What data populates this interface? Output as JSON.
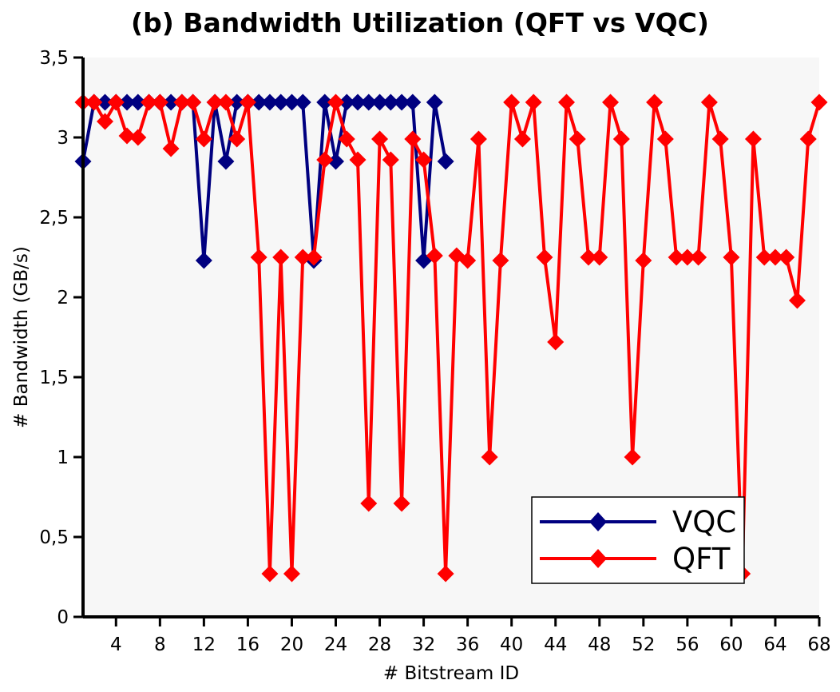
{
  "chart_data": {
    "type": "line",
    "title": "(b) Bandwidth Utilization (QFT vs VQC)",
    "xlabel": "# Bitstream ID",
    "ylabel": "# Bandwidth (GB/s)",
    "xlim": [
      1,
      68
    ],
    "ylim": [
      0,
      3.5
    ],
    "xticks": [
      4,
      8,
      12,
      16,
      20,
      24,
      28,
      32,
      36,
      40,
      44,
      48,
      52,
      56,
      60,
      64,
      68
    ],
    "yticks": [
      0,
      0.5,
      1,
      1.5,
      2,
      2.5,
      3,
      3.5
    ],
    "ytick_labels": [
      "0",
      "0,5",
      "1",
      "1,5",
      "2",
      "2,5",
      "3",
      "3,5"
    ],
    "legend_position": "bottom-right",
    "series": [
      {
        "name": "VQC",
        "color": "#000080",
        "marker": "diamond",
        "x": [
          1,
          2,
          3,
          4,
          5,
          6,
          7,
          8,
          9,
          10,
          11,
          12,
          13,
          14,
          15,
          16,
          17,
          18,
          19,
          20,
          21,
          22,
          23,
          24,
          25,
          26,
          27,
          28,
          29,
          30,
          31,
          32,
          33,
          34
        ],
        "values": [
          2.85,
          3.22,
          3.22,
          3.22,
          3.22,
          3.22,
          3.22,
          3.22,
          3.22,
          3.22,
          3.22,
          2.23,
          3.22,
          2.85,
          3.22,
          3.22,
          3.22,
          3.22,
          3.22,
          3.22,
          3.22,
          2.23,
          3.22,
          2.85,
          3.22,
          3.22,
          3.22,
          3.22,
          3.22,
          3.22,
          3.22,
          2.23,
          3.22,
          2.85
        ]
      },
      {
        "name": "QFT",
        "color": "#ff0000",
        "marker": "diamond",
        "x": [
          1,
          2,
          3,
          4,
          5,
          6,
          7,
          8,
          9,
          10,
          11,
          12,
          13,
          14,
          15,
          16,
          17,
          18,
          19,
          20,
          21,
          22,
          23,
          24,
          25,
          26,
          27,
          28,
          29,
          30,
          31,
          32,
          33,
          34,
          35,
          36,
          37,
          38,
          39,
          40,
          41,
          42,
          43,
          44,
          45,
          46,
          47,
          48,
          49,
          50,
          51,
          52,
          53,
          54,
          55,
          56,
          57,
          58,
          59,
          60,
          61,
          62,
          63,
          64,
          65,
          66,
          67,
          68
        ],
        "values": [
          3.22,
          3.22,
          3.1,
          3.22,
          3.01,
          3.0,
          3.22,
          3.22,
          2.93,
          3.22,
          3.22,
          2.99,
          3.22,
          3.22,
          2.99,
          3.22,
          2.25,
          0.27,
          2.25,
          0.27,
          2.25,
          2.25,
          2.86,
          3.22,
          2.99,
          2.86,
          0.71,
          2.99,
          2.86,
          0.71,
          2.99,
          2.86,
          2.26,
          0.27,
          2.26,
          2.23,
          2.99,
          1.0,
          2.23,
          3.22,
          2.99,
          3.22,
          2.25,
          1.72,
          3.22,
          2.99,
          2.25,
          2.25,
          3.22,
          2.99,
          1.0,
          2.23,
          3.22,
          2.99,
          2.25,
          2.25,
          2.25,
          3.22,
          2.99,
          2.25,
          0.27,
          2.99,
          2.25,
          2.25,
          2.25,
          1.98,
          2.99,
          3.22
        ]
      }
    ]
  }
}
